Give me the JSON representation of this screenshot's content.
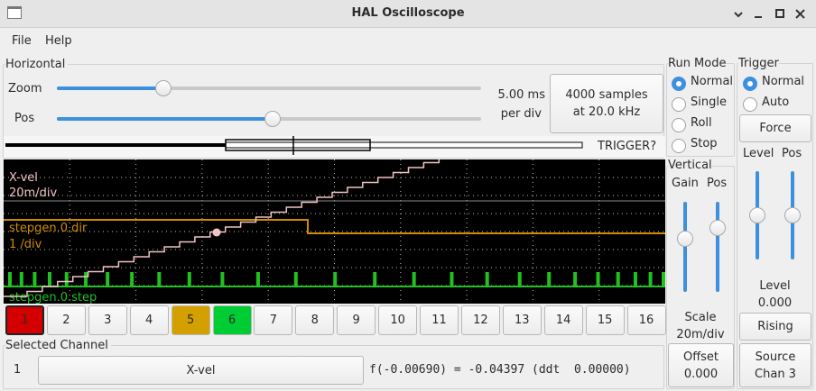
{
  "window": {
    "title": "HAL Oscilloscope"
  },
  "menu": [
    "File",
    "Help"
  ],
  "horizontal": {
    "title": "Horizontal",
    "zoom_label": "Zoom",
    "pos_label": "Pos",
    "scale": "5.00 ms",
    "scale_unit": "per div",
    "samples_button": [
      "4000 samples",
      "at 20.0 kHz"
    ],
    "trigger_status": "TRIGGER?"
  },
  "display": {
    "traces": [
      {
        "name": "X-vel",
        "scale": "20m/div",
        "color": "#f2c4c4"
      },
      {
        "name": "stepgen.0.dir",
        "scale": "1 /div",
        "color": "#d08c00"
      },
      {
        "name": "stepgen.0.step",
        "color": "#22c022"
      }
    ]
  },
  "channels": [
    {
      "label": "1",
      "color": "#d40000"
    },
    {
      "label": "2"
    },
    {
      "label": "3"
    },
    {
      "label": "4"
    },
    {
      "label": "5",
      "color": "#d4a000"
    },
    {
      "label": "6",
      "color": "#00cc33"
    },
    {
      "label": "7"
    },
    {
      "label": "8"
    },
    {
      "label": "9"
    },
    {
      "label": "10"
    },
    {
      "label": "11"
    },
    {
      "label": "12"
    },
    {
      "label": "13"
    },
    {
      "label": "14"
    },
    {
      "label": "15"
    },
    {
      "label": "16"
    }
  ],
  "selected_channel": {
    "title": "Selected Channel",
    "number": "1",
    "name": "X-vel",
    "readout": "f(-0.00690) = -0.04397 (ddt  0.00000)"
  },
  "run_mode": {
    "title": "Run Mode",
    "options": [
      "Normal",
      "Single",
      "Roll",
      "Stop"
    ],
    "selected": 0
  },
  "vertical": {
    "title": "Vertical",
    "gain_label": "Gain",
    "pos_label": "Pos",
    "scale_label": "Scale",
    "scale": "20m/div",
    "offset_label": "Offset",
    "offset": "0.000"
  },
  "trigger": {
    "title": "Trigger",
    "options": [
      "Normal",
      "Auto"
    ],
    "selected": 0,
    "force": "Force",
    "level_label": "Level",
    "pos_label": "Pos",
    "level_title": "Level",
    "level": "0.000",
    "edge": "Rising",
    "source_label": "Source",
    "source": "Chan 3"
  }
}
